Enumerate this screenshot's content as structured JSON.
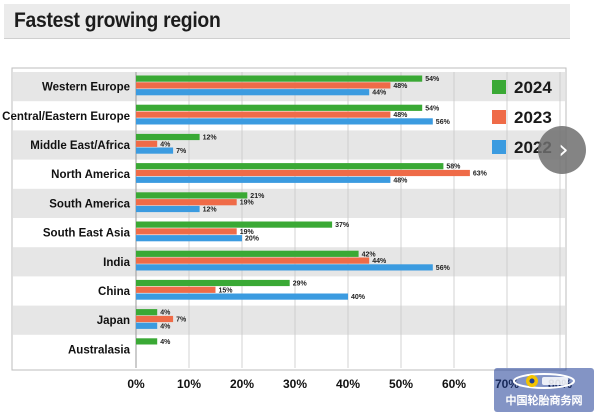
{
  "title": "Fastest growing region",
  "chart_data": {
    "type": "bar",
    "orientation": "horizontal",
    "title": "Fastest growing region",
    "categories": [
      "Western Europe",
      "Central/Eastern Europe",
      "Middle East/Africa",
      "North America",
      "South America",
      "South East Asia",
      "India",
      "China",
      "Japan",
      "Australasia"
    ],
    "series": [
      {
        "name": "2024",
        "color": "#3aa935",
        "values": [
          54,
          54,
          12,
          58,
          21,
          37,
          42,
          29,
          4,
          4
        ],
        "labels": [
          "54%",
          "54%",
          "12%",
          "58%",
          "21%",
          "37%",
          "42%",
          "29%",
          "4%",
          "4%"
        ]
      },
      {
        "name": "2023",
        "color": "#ef6b48",
        "values": [
          48,
          48,
          4,
          63,
          19,
          19,
          44,
          15,
          7,
          null
        ],
        "labels": [
          "48%",
          "48%",
          "4%",
          "63%",
          "19%",
          "19%",
          "44%",
          "15%",
          "7%",
          ""
        ]
      },
      {
        "name": "2022",
        "color": "#3b9be0",
        "values": [
          44,
          56,
          7,
          48,
          12,
          20,
          56,
          40,
          4,
          null
        ],
        "labels": [
          "44%",
          "56%",
          "7%",
          "48%",
          "12%",
          "20%",
          "56%",
          "40%",
          "4%",
          ""
        ]
      }
    ],
    "xlim": [
      0,
      80
    ],
    "xticks": [
      "0%",
      "10%",
      "20%",
      "30%",
      "40%",
      "50%",
      "60%",
      "70%",
      "80%"
    ],
    "legend": "top-right",
    "grid": "vertical"
  },
  "nav": {
    "next_icon": "chevron-right-icon",
    "glyph": "›"
  },
  "watermark": {
    "text": "中国轮胎商务网"
  }
}
